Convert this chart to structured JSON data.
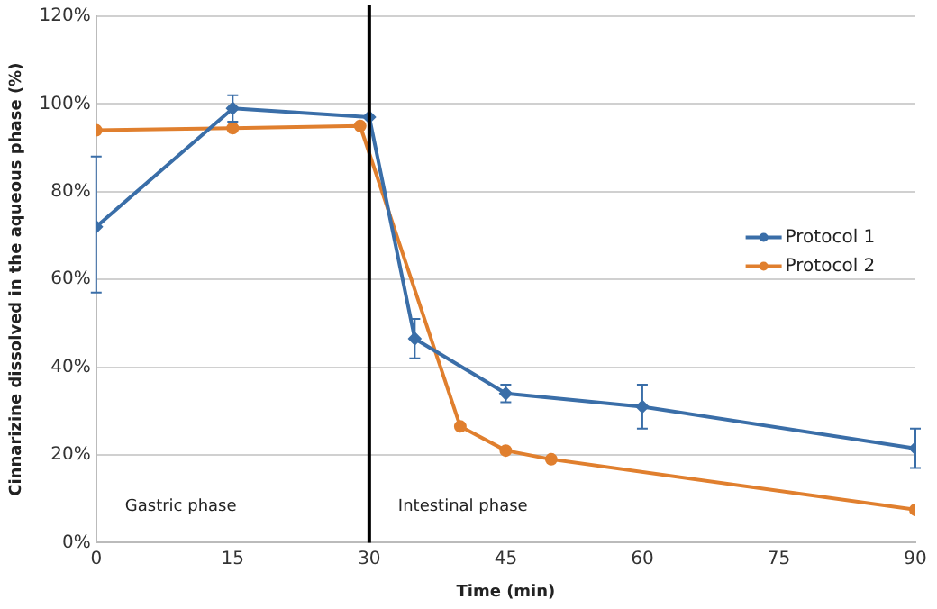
{
  "chart_data": {
    "type": "line",
    "xlabel": "Time (min)",
    "ylabel": "Cinnarizine dissolved in the aqueous phase (%)",
    "xlim": [
      0,
      90
    ],
    "xticks": [
      0,
      15,
      30,
      45,
      60,
      75,
      90
    ],
    "ylim": [
      0,
      120
    ],
    "yticks": [
      {
        "value": 0,
        "label": "0%"
      },
      {
        "value": 20,
        "label": "20%"
      },
      {
        "value": 40,
        "label": "40%"
      },
      {
        "value": 60,
        "label": "60%"
      },
      {
        "value": 80,
        "label": "80%"
      },
      {
        "value": 100,
        "label": "100%"
      },
      {
        "value": 120,
        "label": "120%"
      }
    ],
    "grid": "y",
    "legend": "right",
    "line_style": "solid",
    "series": [
      {
        "name": "Protocol 1",
        "color": "#3a6ea8",
        "marker": "diamond",
        "x": [
          0,
          15,
          30,
          35,
          45,
          60,
          90
        ],
        "values": [
          72,
          99,
          97,
          46.5,
          34,
          31,
          21.5
        ],
        "errors": [
          [
            57,
            88
          ],
          [
            96,
            102
          ],
          null,
          [
            42,
            51
          ],
          [
            32,
            36
          ],
          [
            26,
            36
          ],
          [
            17,
            26
          ]
        ]
      },
      {
        "name": "Protocol 2",
        "color": "#e07f2e",
        "marker": "circle",
        "x": [
          0,
          15,
          29,
          40,
          45,
          50,
          90
        ],
        "values": [
          94,
          94.5,
          95,
          26.5,
          21,
          19,
          7.5
        ]
      }
    ],
    "ref_lines": [
      {
        "axis": "x",
        "value": 30,
        "color": "#000000"
      }
    ],
    "annotations": [
      "Gastric phase",
      "Intestinal phase"
    ]
  }
}
